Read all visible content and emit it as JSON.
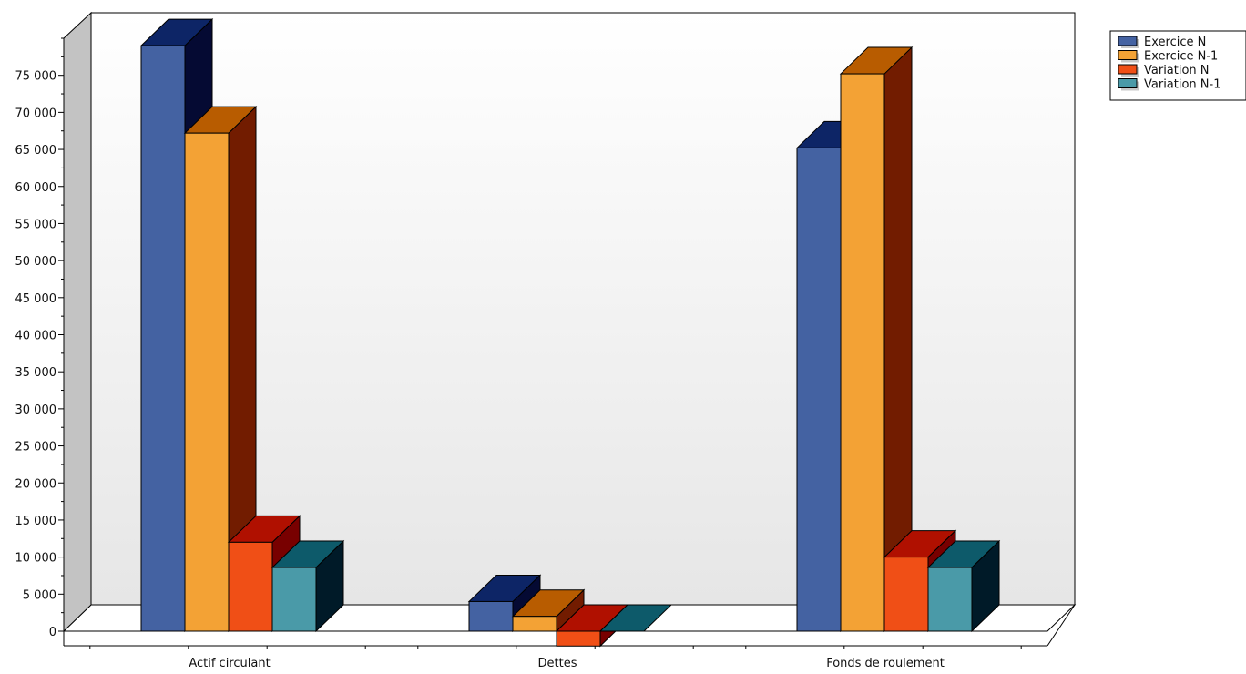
{
  "chart_data": {
    "type": "bar",
    "categories": [
      "Actif circulant",
      "Dettes",
      "Fonds de roulement"
    ],
    "series": [
      {
        "name": "Exercice N",
        "values": [
          79000,
          4000,
          65200
        ],
        "front": "#4462a2",
        "top": "#0d2566",
        "side": "#050a33"
      },
      {
        "name": "Exercice N-1",
        "values": [
          67200,
          2000,
          75200
        ],
        "front": "#f3a235",
        "top": "#b85c00",
        "side": "#721c00"
      },
      {
        "name": "Variation N",
        "values": [
          12000,
          -2000,
          10000
        ],
        "front": "#f04f16",
        "top": "#b01000",
        "side": "#780000"
      },
      {
        "name": "Variation N-1",
        "values": [
          8600,
          0,
          8600
        ],
        "front": "#4a9aa8",
        "top": "#0d5a6a",
        "side": "#001a28"
      }
    ],
    "ylim": [
      0,
      80000
    ],
    "yticks": [
      0,
      5000,
      10000,
      15000,
      20000,
      25000,
      30000,
      35000,
      40000,
      45000,
      50000,
      55000,
      60000,
      65000,
      70000,
      75000
    ],
    "ytick_labels": [
      "0",
      "5 000",
      "10 000",
      "15 000",
      "20 000",
      "25 000",
      "30 000",
      "35 000",
      "40 000",
      "45 000",
      "50 000",
      "55 000",
      "60 000",
      "65 000",
      "70 000",
      "75 000"
    ],
    "legend_position": "top-right",
    "style": "3d"
  }
}
